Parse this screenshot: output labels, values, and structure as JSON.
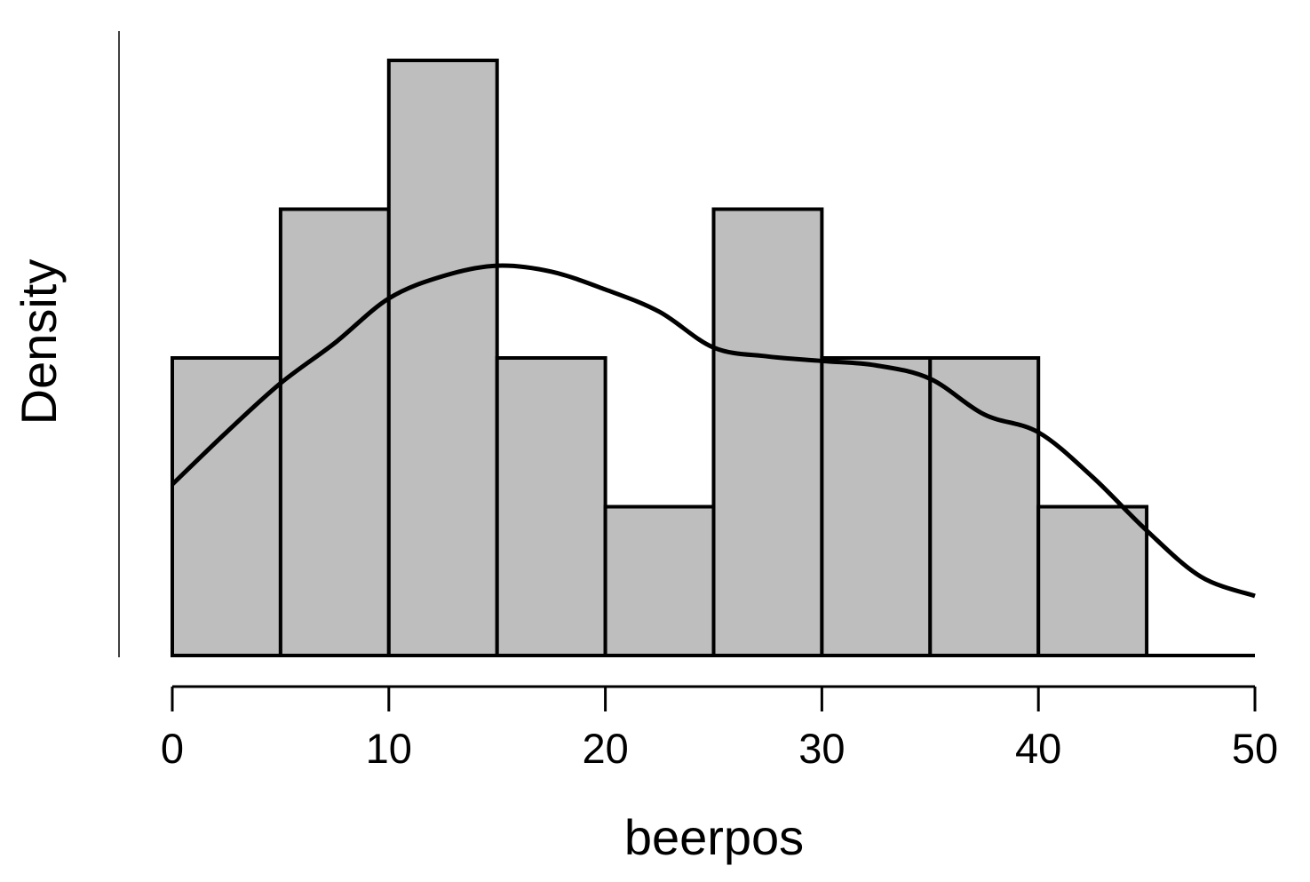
{
  "chart_data": {
    "type": "bar",
    "subtype": "histogram-with-density",
    "xlabel": "beerpos",
    "ylabel": "Density",
    "xlim": [
      0,
      50
    ],
    "x_ticks": [
      0,
      10,
      20,
      30,
      40,
      50
    ],
    "y_ticks_shown": false,
    "grid": false,
    "legend": "none",
    "bins": [
      {
        "start": 0,
        "end": 5,
        "count": 2
      },
      {
        "start": 5,
        "end": 10,
        "count": 3
      },
      {
        "start": 10,
        "end": 15,
        "count": 4
      },
      {
        "start": 15,
        "end": 20,
        "count": 2
      },
      {
        "start": 20,
        "end": 25,
        "count": 1
      },
      {
        "start": 25,
        "end": 30,
        "count": 3
      },
      {
        "start": 30,
        "end": 35,
        "count": 2
      },
      {
        "start": 35,
        "end": 40,
        "count": 2
      },
      {
        "start": 40,
        "end": 45,
        "count": 1
      }
    ],
    "density_curve": {
      "x": [
        0,
        2.5,
        5,
        7.5,
        10,
        12.5,
        15,
        17.5,
        20,
        22.5,
        25,
        27.5,
        30,
        32.5,
        35,
        37.5,
        40,
        42.5,
        45,
        47.5,
        50
      ],
      "y": [
        1.15,
        1.5,
        1.83,
        2.1,
        2.4,
        2.55,
        2.62,
        2.58,
        2.46,
        2.31,
        2.07,
        2.01,
        1.98,
        1.95,
        1.86,
        1.62,
        1.5,
        1.2,
        0.84,
        0.53,
        0.4
      ]
    },
    "colors": {
      "bar_fill": "#bebebe",
      "bar_stroke": "#000000",
      "curve": "#000000",
      "axis": "#000000"
    }
  }
}
